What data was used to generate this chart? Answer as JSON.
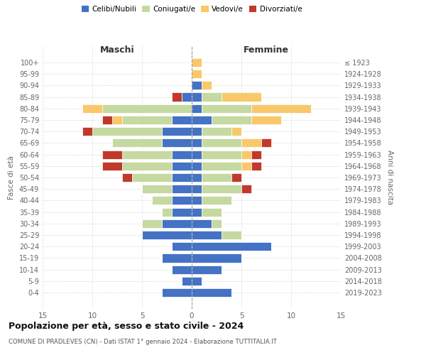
{
  "age_groups": [
    "0-4",
    "5-9",
    "10-14",
    "15-19",
    "20-24",
    "25-29",
    "30-34",
    "35-39",
    "40-44",
    "45-49",
    "50-54",
    "55-59",
    "60-64",
    "65-69",
    "70-74",
    "75-79",
    "80-84",
    "85-89",
    "90-94",
    "95-99",
    "100+"
  ],
  "birth_years": [
    "2019-2023",
    "2014-2018",
    "2009-2013",
    "2004-2008",
    "1999-2003",
    "1994-1998",
    "1989-1993",
    "1984-1988",
    "1979-1983",
    "1974-1978",
    "1969-1973",
    "1964-1968",
    "1959-1963",
    "1954-1958",
    "1949-1953",
    "1944-1948",
    "1939-1943",
    "1934-1938",
    "1929-1933",
    "1924-1928",
    "≤ 1923"
  ],
  "colors": {
    "celibi": "#4472c4",
    "coniugati": "#c5d9a0",
    "vedovi": "#f9c86a",
    "divorziati": "#c0392b"
  },
  "maschi": {
    "celibi": [
      3,
      1,
      2,
      3,
      2,
      5,
      3,
      2,
      2,
      2,
      2,
      2,
      2,
      3,
      3,
      2,
      0,
      1,
      0,
      0,
      0
    ],
    "coniugati": [
      0,
      0,
      0,
      0,
      0,
      0,
      2,
      1,
      2,
      3,
      4,
      5,
      5,
      5,
      7,
      5,
      9,
      0,
      0,
      0,
      0
    ],
    "vedovi": [
      0,
      0,
      0,
      0,
      0,
      0,
      0,
      0,
      0,
      0,
      0,
      0,
      0,
      0,
      0,
      1,
      2,
      0,
      0,
      0,
      0
    ],
    "divorziati": [
      0,
      0,
      0,
      0,
      0,
      0,
      0,
      0,
      0,
      0,
      1,
      2,
      2,
      0,
      1,
      1,
      0,
      1,
      0,
      0,
      0
    ]
  },
  "femmine": {
    "celibi": [
      4,
      1,
      3,
      5,
      8,
      3,
      2,
      1,
      1,
      1,
      1,
      1,
      1,
      1,
      1,
      2,
      1,
      1,
      1,
      0,
      0
    ],
    "coniugati": [
      0,
      0,
      0,
      0,
      0,
      2,
      1,
      2,
      3,
      4,
      3,
      4,
      4,
      4,
      3,
      4,
      5,
      2,
      0,
      0,
      0
    ],
    "vedovi": [
      0,
      0,
      0,
      0,
      0,
      0,
      0,
      0,
      0,
      0,
      0,
      1,
      1,
      2,
      1,
      3,
      6,
      4,
      1,
      1,
      1
    ],
    "divorziati": [
      0,
      0,
      0,
      0,
      0,
      0,
      0,
      0,
      0,
      1,
      1,
      1,
      1,
      1,
      0,
      0,
      0,
      0,
      0,
      0,
      0
    ]
  },
  "xlim": 15,
  "title": "Popolazione per età, sesso e stato civile - 2024",
  "subtitle": "COMUNE DI PRADLEVES (CN) - Dati ISTAT 1° gennaio 2024 - Elaborazione TUTTITALIA.IT",
  "xlabel_left": "Maschi",
  "xlabel_right": "Femmine",
  "ylabel_left": "Fasce di età",
  "ylabel_right": "Anni di nascita",
  "legend_labels": [
    "Celibi/Nubili",
    "Coniugati/e",
    "Vedovi/e",
    "Divorziati/e"
  ],
  "bg_color": "#ffffff",
  "grid_color": "#cccccc"
}
